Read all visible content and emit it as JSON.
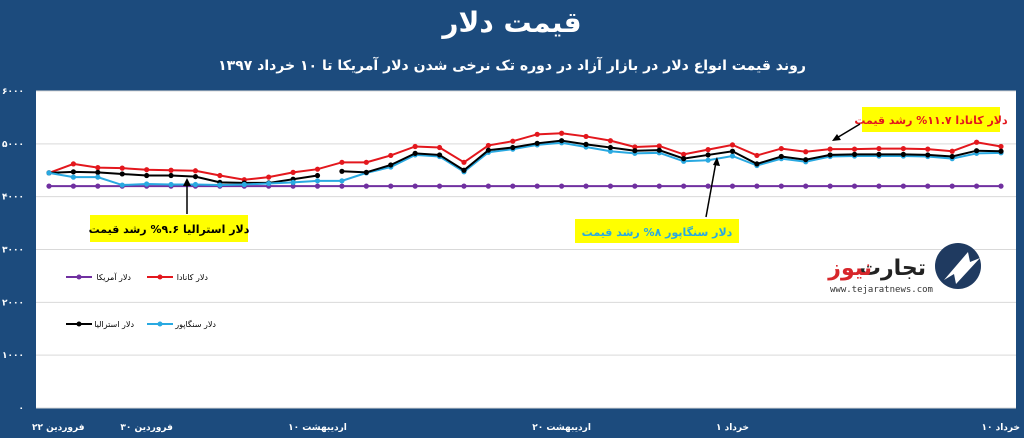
{
  "title": "قیمت دلار",
  "subtitle": "روند قیمت انواع دلار در بازار آزاد در دوره تک نرخی شدن دلار آمریکا تا ۱۰ خرداد ۱۳۹۷",
  "logo": {
    "name_a": "تجارت",
    "name_b": "نیوز",
    "url": "www.tejaratnews.com"
  },
  "colors": {
    "background": "#1c4b7d",
    "plot": "#ffffff",
    "usd": "#7030a0",
    "cad": "#e3171d",
    "aud": "#000000",
    "sgd": "#29a9e1",
    "callout": "#ffff00"
  },
  "chart_data": {
    "type": "line",
    "ylim": [
      0,
      6000
    ],
    "yticks": [
      "۰",
      "۱۰۰۰",
      "۲۰۰۰",
      "۳۰۰۰",
      "۴۰۰۰",
      "۵۰۰۰",
      "۶۰۰۰"
    ],
    "xtick_labels": [
      "۲۲ فروردین",
      "۳۰ فروردین",
      "۱۰ اردیبهشت",
      "۲۰ اردیبهشت",
      "۱ خرداد",
      "۱۰ خرداد"
    ],
    "xtick_index": [
      0,
      4,
      11,
      21,
      28,
      39
    ],
    "n_points": 40,
    "grid": true,
    "series": [
      {
        "name": "دلار آمریکا",
        "color": "#7030a0",
        "values": [
          4200,
          4200,
          4200,
          4200,
          4200,
          4200,
          4200,
          4200,
          4200,
          4200,
          4200,
          4200,
          4200,
          4200,
          4200,
          4200,
          4200,
          4200,
          4200,
          4200,
          4200,
          4200,
          4200,
          4200,
          4200,
          4200,
          4200,
          4200,
          4200,
          4200,
          4200,
          4200,
          4200,
          4200,
          4200,
          4200,
          4200,
          4200,
          4200,
          4200
        ]
      },
      {
        "name": "دلار کانادا",
        "color": "#e3171d",
        "values": [
          4450,
          4620,
          4550,
          4540,
          4510,
          4500,
          4490,
          4400,
          4320,
          4370,
          4460,
          4520,
          4650,
          4650,
          4780,
          4950,
          4930,
          4650,
          4970,
          5050,
          5180,
          5200,
          5140,
          5060,
          4940,
          4960,
          4800,
          4890,
          4980,
          4780,
          4910,
          4850,
          4900,
          4900,
          4910,
          4910,
          4900,
          4860,
          5030,
          4950
        ]
      },
      {
        "name": "دلار استرالیا",
        "color": "#000000",
        "values": [
          4450,
          4470,
          4460,
          4430,
          4400,
          4400,
          4380,
          4270,
          4260,
          4260,
          4330,
          4400,
          null,
          null,
          null,
          null,
          null,
          null,
          null,
          null,
          null,
          null,
          null,
          null,
          null,
          null,
          null,
          null,
          null,
          null,
          null,
          null,
          null,
          null,
          null,
          null,
          null,
          null,
          null,
          null
        ]
      },
      {
        "name": "دلار سنگاپور",
        "color": "#29a9e1",
        "values": [
          4450,
          4370,
          4370,
          4220,
          4240,
          4230,
          4230,
          4220,
          4230,
          4250,
          4270,
          4300,
          4300,
          4450,
          4560,
          4790,
          4760,
          4470,
          4840,
          4900,
          4980,
          5020,
          4940,
          4860,
          4820,
          4830,
          4670,
          4690,
          4770,
          4590,
          4720,
          4660,
          4760,
          4770,
          4770,
          4770,
          4760,
          4720,
          4820,
          4830
        ]
      },
      {
        "name": "دلار سنگاپور (تیره)",
        "color": "#000000",
        "legend": false,
        "values": [
          null,
          null,
          null,
          null,
          null,
          null,
          null,
          null,
          null,
          null,
          null,
          null,
          4480,
          4460,
          4600,
          4820,
          4790,
          4500,
          4880,
          4930,
          5010,
          5060,
          4990,
          4930,
          4870,
          4880,
          4720,
          4790,
          4860,
          4620,
          4760,
          4700,
          4790,
          4800,
          4800,
          4800,
          4790,
          4760,
          4870,
          4860
        ]
      }
    ],
    "annotations": [
      {
        "text": "دلار کانادا ۱۱.۷% رشد قیمت",
        "color": "#e3171d"
      },
      {
        "text": "دلار استرالیا ۹.۶% رشد قیمت",
        "color": "#000000"
      },
      {
        "text": "دلار سنگاپور ۸% رشد قیمت",
        "color": "#29a9e1"
      }
    ]
  }
}
